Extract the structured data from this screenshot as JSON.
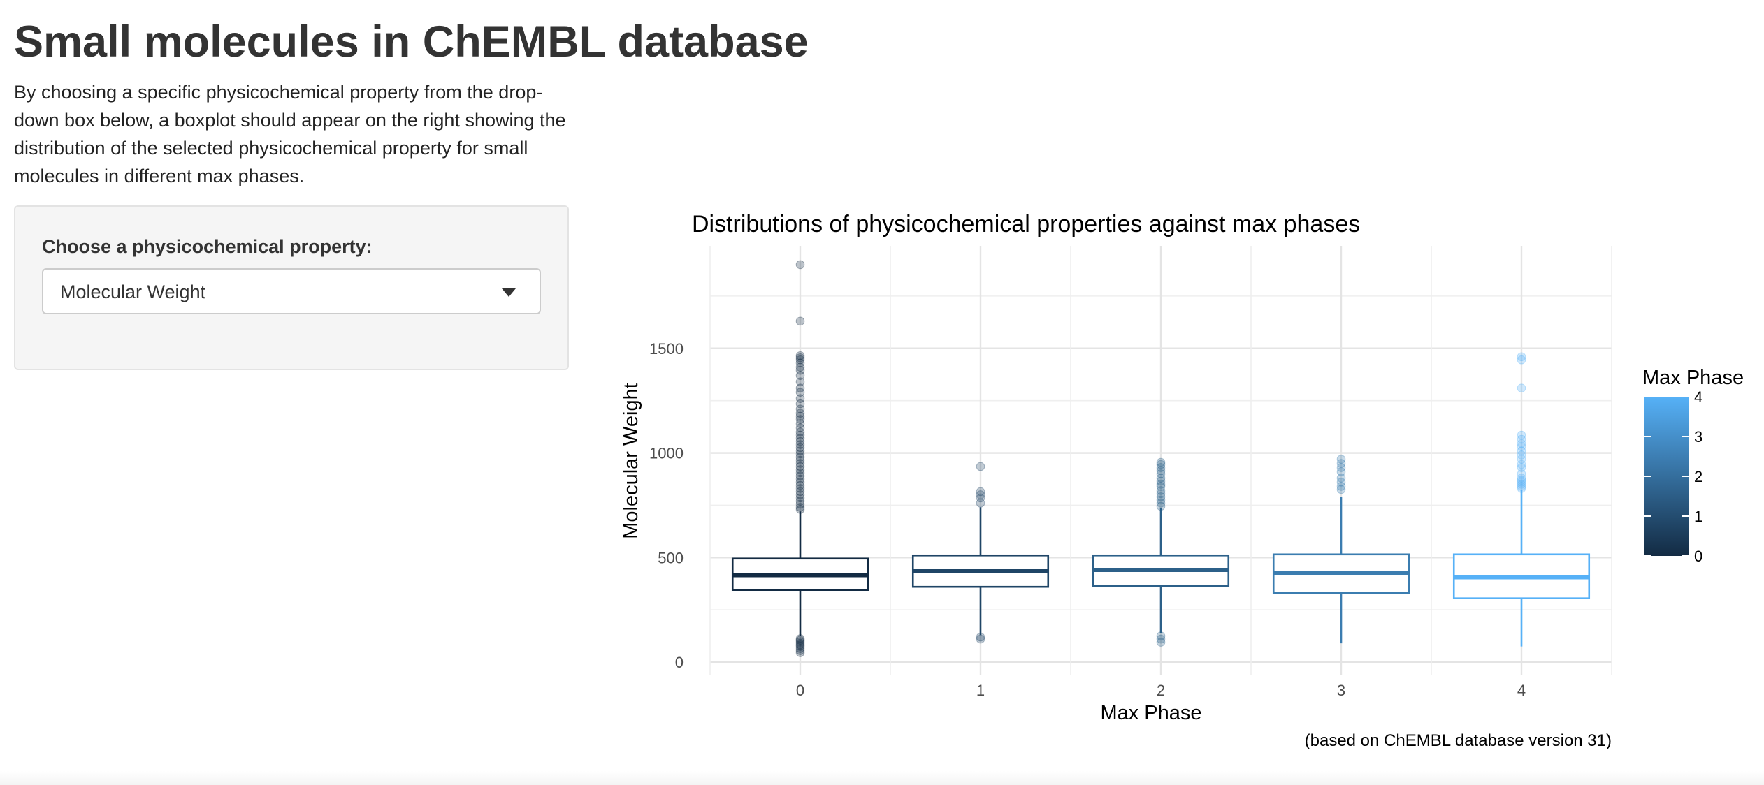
{
  "page": {
    "title": "Small molecules in ChEMBL database",
    "description": "By choosing a specific physicochemical property from the drop-down box below, a boxplot should appear on the right showing the distribution of the selected physicochemical property for small molecules in different max phases."
  },
  "sidebar": {
    "label": "Choose a physicochemical property:",
    "select_value": "Molecular Weight"
  },
  "chart_data": {
    "type": "boxplot",
    "title": "Distributions of physicochemical properties against max phases",
    "xlabel": "Max Phase",
    "ylabel": "Molecular Weight",
    "caption": "(based on ChEMBL database version 31)",
    "categories": [
      "0",
      "1",
      "2",
      "3",
      "4"
    ],
    "ylim": [
      -60,
      1990
    ],
    "yticks": [
      0,
      500,
      1000,
      1500
    ],
    "grid": true,
    "legend": {
      "title": "Max Phase",
      "position": "right",
      "ticks": [
        "0",
        "1",
        "2",
        "3",
        "4"
      ],
      "range": [
        0,
        4
      ]
    },
    "colors": [
      "#132B43",
      "#1F4566",
      "#2C6089",
      "#3B7DB0",
      "#56B1F7"
    ],
    "boxes": [
      {
        "category": "0",
        "q1": 345,
        "median": 415,
        "q3": 495,
        "whisker_low": 125,
        "whisker_high": 720,
        "outliers": [
          1900,
          1630,
          1465,
          1455,
          1445,
          1430,
          1410,
          1395,
          1370,
          1340,
          1310,
          1290,
          1260,
          1235,
          1210,
          1190,
          1175,
          1160,
          1140,
          1120,
          1100,
          1085,
          1070,
          1055,
          1040,
          1025,
          1010,
          995,
          980,
          965,
          950,
          935,
          920,
          905,
          890,
          875,
          860,
          845,
          830,
          815,
          800,
          785,
          770,
          755,
          740,
          730,
          112,
          105,
          98,
          90,
          82,
          75,
          65,
          55,
          45
        ]
      },
      {
        "category": "1",
        "q1": 360,
        "median": 435,
        "q3": 510,
        "whisker_low": 130,
        "whisker_high": 740,
        "outliers": [
          935,
          815,
          800,
          785,
          760,
          120,
          110
        ]
      },
      {
        "category": "2",
        "q1": 365,
        "median": 440,
        "q3": 510,
        "whisker_low": 140,
        "whisker_high": 735,
        "outliers": [
          955,
          945,
          930,
          915,
          900,
          880,
          865,
          850,
          840,
          820,
          805,
          790,
          775,
          760,
          745,
          125,
          110,
          95
        ]
      },
      {
        "category": "3",
        "q1": 330,
        "median": 425,
        "q3": 515,
        "whisker_low": 90,
        "whisker_high": 790,
        "outliers": [
          970,
          950,
          930,
          910,
          880,
          860,
          840,
          825
        ]
      },
      {
        "category": "4",
        "q1": 305,
        "median": 405,
        "q3": 515,
        "whisker_low": 75,
        "whisker_high": 825,
        "outliers": [
          1460,
          1445,
          1310,
          1085,
          1065,
          1045,
          1030,
          1010,
          990,
          970,
          945,
          930,
          900,
          880,
          870,
          860,
          850,
          840,
          830
        ]
      }
    ]
  }
}
